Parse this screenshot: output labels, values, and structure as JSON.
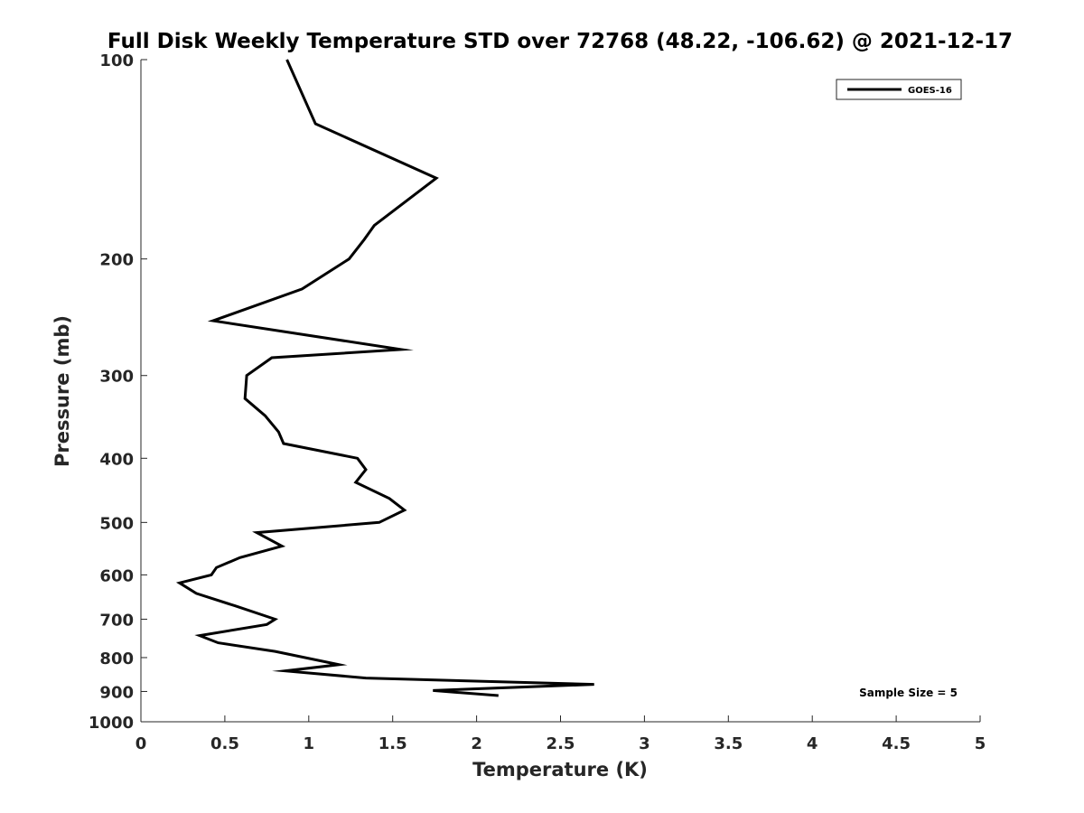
{
  "chart_data": {
    "type": "line",
    "title": "Full Disk Weekly Temperature STD over 72768 (48.22, -106.62) @ 2021-12-17",
    "xlabel": "Temperature (K)",
    "ylabel": "Pressure (mb)",
    "xlim": [
      0,
      5
    ],
    "ylim": [
      100,
      1000
    ],
    "yscale": "log",
    "y_reversed": true,
    "grid": false,
    "legend_position": "top-right",
    "x_ticks": [
      "0",
      "0.5",
      "1",
      "1.5",
      "2",
      "2.5",
      "3",
      "3.5",
      "4",
      "4.5",
      "5"
    ],
    "y_ticks": [
      "100",
      "200",
      "300",
      "400",
      "500",
      "600",
      "700",
      "800",
      "900",
      "1000"
    ],
    "series": [
      {
        "name": "GOES-16",
        "color": "#000000",
        "points": [
          {
            "x": 0.87,
            "y": 100
          },
          {
            "x": 1.04,
            "y": 125
          },
          {
            "x": 1.76,
            "y": 151
          },
          {
            "x": 1.39,
            "y": 178
          },
          {
            "x": 1.33,
            "y": 187
          },
          {
            "x": 1.24,
            "y": 200
          },
          {
            "x": 0.96,
            "y": 222
          },
          {
            "x": 0.43,
            "y": 248
          },
          {
            "x": 1.55,
            "y": 274
          },
          {
            "x": 0.78,
            "y": 282
          },
          {
            "x": 0.63,
            "y": 300
          },
          {
            "x": 0.62,
            "y": 325
          },
          {
            "x": 0.74,
            "y": 345
          },
          {
            "x": 0.82,
            "y": 365
          },
          {
            "x": 0.85,
            "y": 380
          },
          {
            "x": 1.29,
            "y": 400
          },
          {
            "x": 1.34,
            "y": 416
          },
          {
            "x": 1.28,
            "y": 435
          },
          {
            "x": 1.48,
            "y": 460
          },
          {
            "x": 1.57,
            "y": 479
          },
          {
            "x": 1.42,
            "y": 500
          },
          {
            "x": 0.69,
            "y": 518
          },
          {
            "x": 0.84,
            "y": 543
          },
          {
            "x": 0.59,
            "y": 565
          },
          {
            "x": 0.45,
            "y": 585
          },
          {
            "x": 0.42,
            "y": 600
          },
          {
            "x": 0.23,
            "y": 617
          },
          {
            "x": 0.33,
            "y": 640
          },
          {
            "x": 0.56,
            "y": 668
          },
          {
            "x": 0.8,
            "y": 700
          },
          {
            "x": 0.75,
            "y": 713
          },
          {
            "x": 0.35,
            "y": 741
          },
          {
            "x": 0.46,
            "y": 760
          },
          {
            "x": 0.8,
            "y": 783
          },
          {
            "x": 1.18,
            "y": 820
          },
          {
            "x": 0.86,
            "y": 838
          },
          {
            "x": 1.34,
            "y": 859
          },
          {
            "x": 2.7,
            "y": 878
          },
          {
            "x": 1.74,
            "y": 897
          },
          {
            "x": 2.13,
            "y": 913
          }
        ]
      }
    ],
    "annotations": [
      {
        "text": "Sample Size = 5",
        "position": "bottom-right"
      }
    ]
  }
}
